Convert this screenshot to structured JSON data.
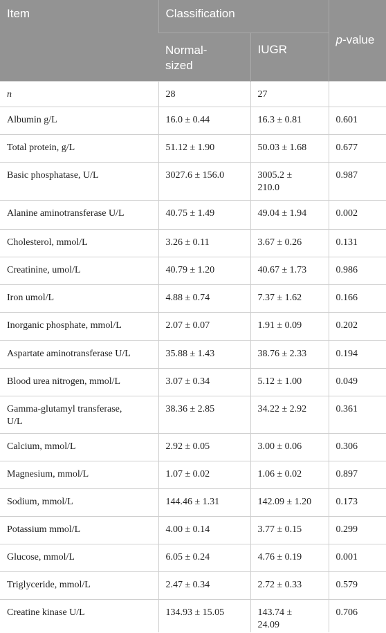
{
  "header": {
    "item": "Item",
    "classification": "Classification",
    "groups": [
      "Normal-sized",
      "IUGR"
    ],
    "p_value": [
      "p",
      "-value"
    ]
  },
  "table": {
    "rows": [
      [
        "n",
        "28",
        "27",
        ""
      ],
      [
        "Albumin g/L",
        "16.0 ± 0.44",
        "16.3 ± 0.81",
        "0.601"
      ],
      [
        "Total protein, g/L",
        "51.12 ± 1.90",
        "50.03 ± 1.68",
        "0.677"
      ],
      [
        "Basic phosphatase, U/L",
        "3027.6 ± 156.0",
        "3005.2 ± 210.0",
        "0.987"
      ],
      [
        "Alanine aminotransferase U/L",
        "40.75 ± 1.49",
        "49.04 ± 1.94",
        "0.002"
      ],
      [
        "Cholesterol, mmol/L",
        "3.26 ± 0.11",
        "3.67 ± 0.26",
        "0.131"
      ],
      [
        "Creatinine, umol/L",
        "40.79 ± 1.20",
        "40.67 ± 1.73",
        "0.986"
      ],
      [
        "Iron umol/L",
        "4.88 ± 0.74",
        "7.37 ± 1.62",
        "0.166"
      ],
      [
        "Inorganic phosphate, mmol/L",
        "2.07 ± 0.07",
        "1.91 ± 0.09",
        "0.202"
      ],
      [
        "Aspartate aminotransferase U/L",
        "35.88 ± 1.43",
        "38.76 ± 2.33",
        "0.194"
      ],
      [
        "Blood urea nitrogen, mmol/L",
        "3.07 ± 0.34",
        "5.12 ± 1.00",
        "0.049"
      ],
      [
        "Gamma-glutamyl transferase, U/L",
        "38.36 ± 2.85",
        "34.22 ± 2.92",
        "0.361"
      ],
      [
        "Calcium, mmol/L",
        "2.92 ± 0.05",
        "3.00 ± 0.06",
        "0.306"
      ],
      [
        "Magnesium, mmol/L",
        "1.07 ± 0.02",
        "1.06 ± 0.02",
        "0.897"
      ],
      [
        "Sodium, mmol/L",
        "144.46 ± 1.31",
        "142.09 ± 1.20",
        "0.173"
      ],
      [
        "Potassium mmol/L",
        "4.00 ± 0.14",
        "3.77 ± 0.15",
        "0.299"
      ],
      [
        "Glucose, mmol/L",
        "6.05 ± 0.24",
        "4.76 ± 0.19",
        "0.001"
      ],
      [
        "Triglyceride, mmol/L",
        "2.47 ± 0.34",
        "2.72 ± 0.33",
        "0.579"
      ],
      [
        "Creatine kinase U/L",
        "134.93 ± 15.05",
        "143.74 ± 24.09",
        "0.706"
      ]
    ]
  }
}
